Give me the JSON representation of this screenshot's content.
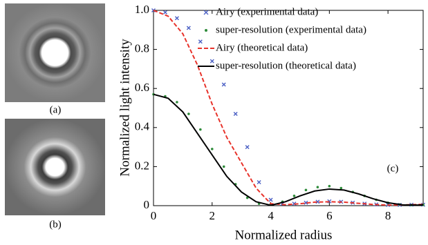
{
  "panel_labels": [
    "(a)",
    "(b)"
  ],
  "chart_data": {
    "type": "line",
    "annotation": "(c)",
    "xlabel": "Normalized radius",
    "ylabel": "Normalized light intensity",
    "xlim": [
      0,
      9.2
    ],
    "ylim": [
      0,
      1
    ],
    "xticks": [
      0,
      2,
      4,
      6,
      8
    ],
    "yticks": [
      0,
      0.2,
      0.4,
      0.6,
      0.8,
      {
        "value": 1,
        "label": "1.0"
      }
    ],
    "legend": "upper right",
    "series": [
      {
        "name": "Airy (experimental data)",
        "color": "#4a5fc4",
        "marker": "x",
        "x": [
          0,
          0.4,
          0.8,
          1.2,
          1.6,
          2.0,
          2.4,
          2.8,
          3.2,
          3.6,
          4.0,
          4.4,
          4.8,
          5.2,
          5.6,
          6.0,
          6.4,
          6.8,
          7.2,
          7.6,
          8.0,
          8.4,
          8.8,
          9.2
        ],
        "values": [
          1.0,
          0.99,
          0.96,
          0.91,
          0.84,
          0.74,
          0.62,
          0.47,
          0.3,
          0.12,
          0.03,
          0.01,
          0.01,
          0.015,
          0.02,
          0.022,
          0.02,
          0.015,
          0.01,
          0.006,
          0.004,
          0.004,
          0.005,
          0.005
        ]
      },
      {
        "name": "super-resolution (experimental data)",
        "color": "#2e8b3a",
        "marker": "dot",
        "x": [
          0,
          0.4,
          0.8,
          1.2,
          1.6,
          2.0,
          2.4,
          2.8,
          3.2,
          3.6,
          4.0,
          4.4,
          4.8,
          5.2,
          5.6,
          6.0,
          6.4,
          6.8,
          7.2,
          7.6,
          8.0,
          8.4,
          8.8,
          9.2
        ],
        "values": [
          0.57,
          0.56,
          0.53,
          0.47,
          0.39,
          0.29,
          0.2,
          0.11,
          0.04,
          0.01,
          0.005,
          0.02,
          0.05,
          0.08,
          0.095,
          0.1,
          0.09,
          0.07,
          0.05,
          0.03,
          0.015,
          0.006,
          0.003,
          0.004
        ]
      },
      {
        "name": "Airy (theoretical data)",
        "color": "#e8322a",
        "linestyle": "dashed",
        "x": [
          0,
          0.5,
          1,
          1.5,
          2,
          2.5,
          3,
          3.5,
          4,
          4.5,
          5,
          5.5,
          6,
          6.5,
          7,
          7.5,
          8,
          8.5,
          9,
          9.2
        ],
        "values": [
          1,
          0.97,
          0.88,
          0.72,
          0.52,
          0.35,
          0.22,
          0.09,
          0.01,
          0.005,
          0.01,
          0.018,
          0.02,
          0.018,
          0.012,
          0.006,
          0.003,
          0.004,
          0.006,
          0.006
        ]
      },
      {
        "name": "super-resolution (theoretical data)",
        "color": "#000000",
        "linestyle": "solid",
        "x": [
          0,
          0.5,
          1,
          1.5,
          2,
          2.5,
          3,
          3.5,
          4,
          4.5,
          5,
          5.5,
          6,
          6.5,
          7,
          7.5,
          8,
          8.5,
          9,
          9.2
        ],
        "values": [
          0.57,
          0.55,
          0.48,
          0.37,
          0.26,
          0.15,
          0.07,
          0.02,
          0.002,
          0.02,
          0.05,
          0.075,
          0.085,
          0.08,
          0.06,
          0.035,
          0.015,
          0.004,
          0.003,
          0.004
        ]
      }
    ]
  }
}
